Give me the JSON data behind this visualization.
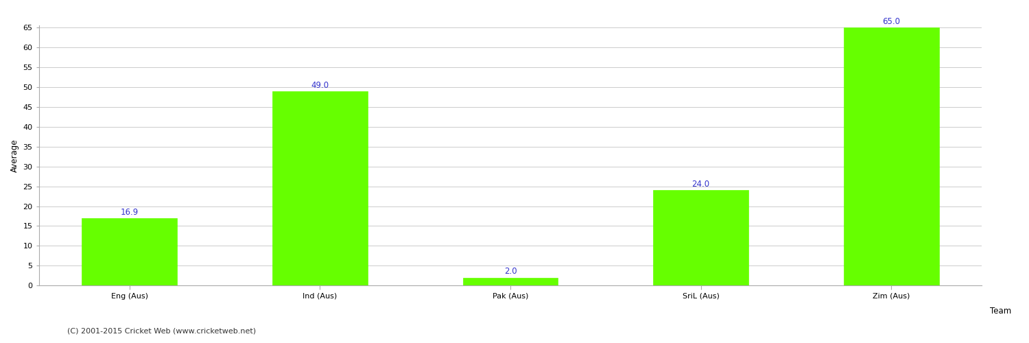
{
  "categories": [
    "Eng (Aus)",
    "Ind (Aus)",
    "Pak (Aus)",
    "SriL (Aus)",
    "Zim (Aus)"
  ],
  "values": [
    16.9,
    49.0,
    2.0,
    24.0,
    65.0
  ],
  "bar_color": "#66ff00",
  "bar_edge_color": "#66ff00",
  "xlabel": "Team",
  "ylabel": "Average",
  "ylim": [
    0,
    65
  ],
  "yticks": [
    0,
    5,
    10,
    15,
    20,
    25,
    30,
    35,
    40,
    45,
    50,
    55,
    60,
    65
  ],
  "value_color": "#3333cc",
  "value_fontsize": 8.5,
  "axis_label_fontsize": 8.5,
  "tick_fontsize": 8,
  "grid_color": "#cccccc",
  "background_color": "#ffffff",
  "footer_text": "(C) 2001-2015 Cricket Web (www.cricketweb.net)",
  "footer_fontsize": 8,
  "footer_color": "#333333",
  "spine_color": "#aaaaaa"
}
